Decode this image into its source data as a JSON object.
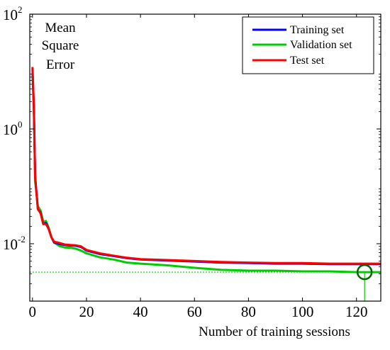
{
  "chart_data": {
    "type": "line",
    "title": "",
    "xlabel": "Number of training sessions",
    "ylabel_lines": [
      "Mean",
      "Square",
      "Error"
    ],
    "xlim": [
      -1,
      129
    ],
    "ylim": [
      0.001,
      100
    ],
    "y_scale": "log",
    "x_ticks": [
      0,
      20,
      40,
      60,
      80,
      100,
      120
    ],
    "x_tick_labels": [
      "0",
      "20",
      "40",
      "60",
      "80",
      "100",
      "120"
    ],
    "y_ticks": [
      {
        "value": 100,
        "base": "10",
        "exp": "2"
      },
      {
        "value": 1,
        "base": "10",
        "exp": "0"
      },
      {
        "value": 0.01,
        "base": "10",
        "exp": "-2"
      }
    ],
    "grid": false,
    "legend_position": "top-right",
    "best_epoch": 123,
    "best_value": 0.0032,
    "series": [
      {
        "name": "Training set",
        "color": "#0000ff",
        "x": [
          0,
          0.5,
          1,
          2,
          3,
          4,
          5,
          6,
          7,
          8,
          9,
          10,
          12,
          14,
          16,
          18,
          20,
          25,
          30,
          35,
          40,
          50,
          60,
          70,
          80,
          90,
          100,
          110,
          120,
          123,
          129
        ],
        "y": [
          11,
          2.5,
          0.15,
          0.04,
          0.035,
          0.022,
          0.023,
          0.018,
          0.013,
          0.0105,
          0.0102,
          0.0099,
          0.0095,
          0.0093,
          0.0092,
          0.0088,
          0.0076,
          0.0066,
          0.0061,
          0.0056,
          0.0053,
          0.0051,
          0.0049,
          0.0047,
          0.0046,
          0.0045,
          0.0045,
          0.0044,
          0.0044,
          0.0044,
          0.0044
        ]
      },
      {
        "name": "Validation set",
        "color": "#00cc00",
        "x": [
          0,
          0.5,
          1,
          2,
          3,
          4,
          5,
          6,
          7,
          8,
          9,
          10,
          12,
          14,
          16,
          18,
          20,
          25,
          30,
          35,
          40,
          50,
          60,
          70,
          80,
          90,
          100,
          110,
          120,
          123,
          129
        ],
        "y": [
          9,
          2.2,
          0.12,
          0.045,
          0.038,
          0.024,
          0.025,
          0.019,
          0.013,
          0.0105,
          0.0098,
          0.0091,
          0.0086,
          0.0085,
          0.0082,
          0.0076,
          0.0068,
          0.0058,
          0.0053,
          0.0047,
          0.0045,
          0.0042,
          0.0038,
          0.0035,
          0.0034,
          0.0034,
          0.0033,
          0.0033,
          0.0032,
          0.0032,
          0.0032
        ]
      },
      {
        "name": "Test set",
        "color": "#ff0000",
        "x": [
          0,
          0.5,
          1,
          2,
          3,
          4,
          5,
          6,
          7,
          8,
          9,
          10,
          12,
          14,
          16,
          18,
          20,
          25,
          30,
          35,
          40,
          50,
          60,
          70,
          80,
          90,
          100,
          110,
          120,
          123,
          129
        ],
        "y": [
          12,
          2.6,
          0.14,
          0.04,
          0.034,
          0.022,
          0.022,
          0.018,
          0.013,
          0.0108,
          0.0106,
          0.0103,
          0.0097,
          0.0095,
          0.0094,
          0.009,
          0.0078,
          0.0068,
          0.0062,
          0.0057,
          0.0054,
          0.0052,
          0.005,
          0.0048,
          0.0047,
          0.0046,
          0.0046,
          0.0045,
          0.0045,
          0.0045,
          0.0045
        ]
      }
    ]
  }
}
